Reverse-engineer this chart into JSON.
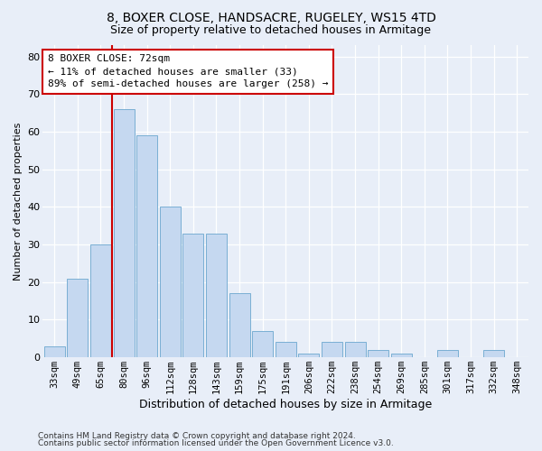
{
  "title1": "8, BOXER CLOSE, HANDSACRE, RUGELEY, WS15 4TD",
  "title2": "Size of property relative to detached houses in Armitage",
  "xlabel": "Distribution of detached houses by size in Armitage",
  "ylabel": "Number of detached properties",
  "categories": [
    "33sqm",
    "49sqm",
    "65sqm",
    "80sqm",
    "96sqm",
    "112sqm",
    "128sqm",
    "143sqm",
    "159sqm",
    "175sqm",
    "191sqm",
    "206sqm",
    "222sqm",
    "238sqm",
    "254sqm",
    "269sqm",
    "285sqm",
    "301sqm",
    "317sqm",
    "332sqm",
    "348sqm"
  ],
  "values": [
    3,
    21,
    30,
    66,
    59,
    40,
    33,
    33,
    17,
    7,
    4,
    1,
    4,
    4,
    2,
    1,
    0,
    2,
    0,
    2,
    0
  ],
  "bar_color": "#c5d8f0",
  "bar_edge_color": "#7aafd4",
  "vline_x": 2.5,
  "vline_color": "#cc0000",
  "annotation_text": "8 BOXER CLOSE: 72sqm\n← 11% of detached houses are smaller (33)\n89% of semi-detached houses are larger (258) →",
  "annotation_box_color": "#ffffff",
  "annotation_box_edgecolor": "#cc0000",
  "ylim": [
    0,
    83
  ],
  "yticks": [
    0,
    10,
    20,
    30,
    40,
    50,
    60,
    70,
    80
  ],
  "footer1": "Contains HM Land Registry data © Crown copyright and database right 2024.",
  "footer2": "Contains public sector information licensed under the Open Government Licence v3.0.",
  "bg_color": "#e8eef8",
  "plot_bg_color": "#e8eef8",
  "title1_fontsize": 10,
  "title2_fontsize": 9,
  "annotation_fontsize": 8,
  "ylabel_fontsize": 8,
  "xlabel_fontsize": 9
}
